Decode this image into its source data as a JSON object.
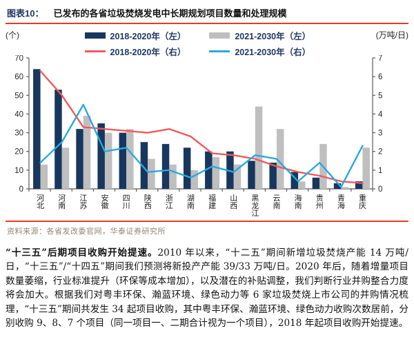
{
  "header": {
    "figure_label": "图表10：",
    "title": "已发布的各省垃圾焚烧发电中长期规划项目数量和处理规模"
  },
  "source": {
    "text": "资料来源：各省发改委官网，华泰证券研究所"
  },
  "body": {
    "lead": "“十三五”后期项目收购开始提速。",
    "rest": "2010 年以来，“十二五”期间新增垃圾焚烧产能 14 万吨/日，“十三五”/“十四五”期间我们预测将新投产产能 39/33 万吨/日。2020 年后，随着增量项目数量萎缩，行业标准提升（环保等成本增加），以及潜在的补贴调整，我们判断行业并购整合力度将会加大。根据我们对粤丰环保、瀚蓝环境、绿色动力等 6 家垃圾焚烧上市公司的并购情况梳理，“十三五”期间共发生 34 起项目收购，其中粤丰环保、瀚蓝环境、绿色动力收购次数居前，分别收购 9、8、7 个项目（同一项目一、二期合计视为一个项目），2018 年起项目收购开始提速。"
  },
  "chart_data": {
    "type": "combo-bar-line",
    "categories": [
      "河北",
      "河南",
      "江苏",
      "安徽",
      "四川",
      "陕西",
      "浙江",
      "湖南",
      "福建",
      "山西",
      "黑龙江",
      "云南",
      "海南",
      "贵州",
      "青海",
      "重庆"
    ],
    "series": [
      {
        "name": "2018-2020年（左）",
        "type": "bar",
        "axis": "left",
        "color": "#17375e",
        "values": [
          64,
          53,
          32,
          35,
          30,
          25,
          24,
          22,
          20,
          20,
          15,
          14,
          9,
          6,
          3,
          4
        ]
      },
      {
        "name": "2021-2030年（左）",
        "type": "bar",
        "axis": "left",
        "color": "#bfbfbf",
        "values": [
          13,
          22,
          39,
          30,
          32,
          16,
          13,
          10,
          17,
          13,
          44,
          32,
          4,
          24,
          1,
          22
        ]
      },
      {
        "name": "2018-2020年（右）",
        "type": "line",
        "axis": "right",
        "color": "#f2595b",
        "values": [
          6.3,
          5.0,
          3.3,
          3.2,
          3.1,
          3.0,
          3.2,
          2.8,
          1.9,
          1.8,
          1.6,
          1.2,
          0.9,
          0.7,
          0.4,
          0.3
        ]
      },
      {
        "name": "2021-2030年（右）",
        "type": "line",
        "axis": "right",
        "color": "#29a8e0",
        "values": [
          1.4,
          2.5,
          4.5,
          2.0,
          2.2,
          0.9,
          1.0,
          0.6,
          1.2,
          0.9,
          1.8,
          1.6,
          0.4,
          1.4,
          0.1,
          2.3
        ]
      }
    ],
    "left_axis": {
      "unit": "(个)",
      "min": 0,
      "max": 70,
      "step": 10
    },
    "right_axis": {
      "unit": "(万吨/日)",
      "min": 0,
      "max": 7,
      "step": 1
    },
    "grid": "off",
    "legend_position": "top-center",
    "axis_color": "#595959"
  }
}
